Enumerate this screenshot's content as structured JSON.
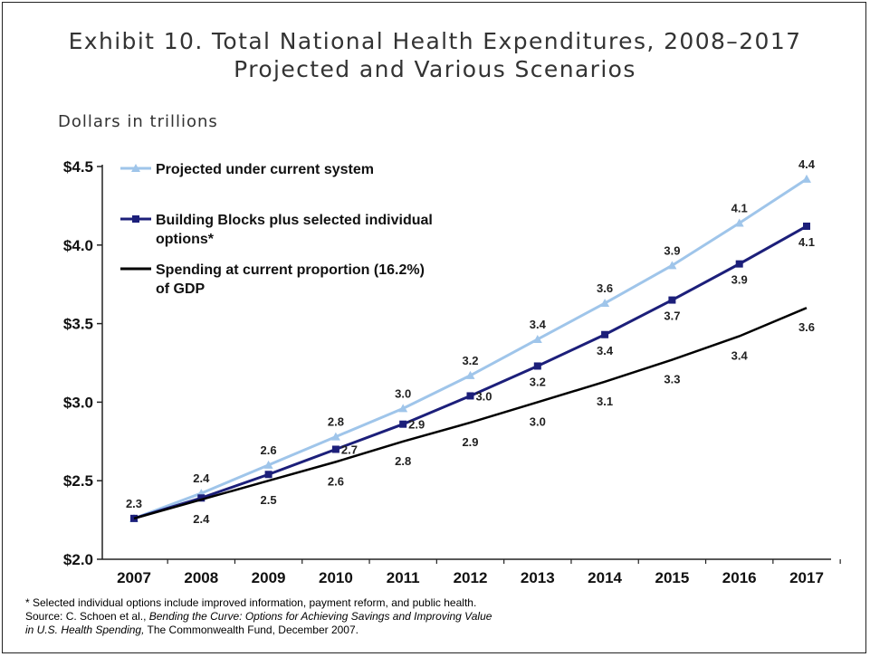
{
  "title_line1": "Exhibit 10. Total National Health Expenditures, 2008–2017",
  "title_line2": "Projected and Various Scenarios",
  "unit_label": "Dollars in trillions",
  "chart_data": {
    "type": "line",
    "title": "Exhibit 10. Total National Health Expenditures, 2008–2017 Projected and Various Scenarios",
    "ylabel": "Dollars in trillions",
    "x": [
      "2007",
      "2008",
      "2009",
      "2010",
      "2011",
      "2012",
      "2013",
      "2014",
      "2015",
      "2016",
      "2017"
    ],
    "ylim": [
      2.0,
      4.5
    ],
    "yticks": [
      2.0,
      2.5,
      3.0,
      3.5,
      4.0,
      4.5
    ],
    "ytick_labels": [
      "$2.0",
      "$2.5",
      "$3.0",
      "$3.5",
      "$4.0",
      "$4.5"
    ],
    "grid": false,
    "legend_position": "top-left",
    "series": [
      {
        "name": "Projected under current system",
        "color": "#9fc5ea",
        "marker": "triangle",
        "values": [
          2.26,
          2.42,
          2.6,
          2.78,
          2.96,
          3.17,
          3.4,
          3.63,
          3.87,
          4.14,
          4.42
        ],
        "labels": [
          "2.3",
          "2.4",
          "2.6",
          "2.8",
          "3.0",
          "3.2",
          "3.4",
          "3.6",
          "3.9",
          "4.1",
          "4.4"
        ]
      },
      {
        "name": "Building Blocks plus selected individual options*",
        "color": "#1c1f7a",
        "marker": "square",
        "values": [
          2.26,
          2.39,
          2.54,
          2.7,
          2.86,
          3.04,
          3.23,
          3.43,
          3.65,
          3.88,
          4.12
        ],
        "labels": [
          "",
          "",
          "",
          "2.7",
          "2.9",
          "3.0",
          "3.2",
          "3.4",
          "3.7",
          "3.9",
          "4.1"
        ]
      },
      {
        "name": "Spending at current proportion (16.2%) of GDP",
        "color": "#000000",
        "marker": "none",
        "values": [
          2.26,
          2.38,
          2.5,
          2.62,
          2.75,
          2.87,
          3.0,
          3.13,
          3.27,
          3.42,
          3.6
        ],
        "labels": [
          "",
          "2.4",
          "2.5",
          "2.6",
          "2.8",
          "2.9",
          "3.0",
          "3.1",
          "3.3",
          "3.4",
          "3.6"
        ]
      }
    ],
    "legend_labels": [
      [
        "Projected under current system"
      ],
      [
        "Building Blocks plus selected individual",
        "options*"
      ],
      [
        "Spending at current proportion (16.2%)",
        "of GDP"
      ]
    ]
  },
  "footnote": {
    "line1": "* Selected individual options include improved information, payment reform, and public health.",
    "source_prefix": "Source: C. Schoen et al., ",
    "source_title_a": "Bending the Curve: Options for Achieving Savings and Improving Value",
    "source_title_b": "in U.S. Health Spending,",
    "source_suffix": " The Commonwealth Fund, December 2007."
  }
}
